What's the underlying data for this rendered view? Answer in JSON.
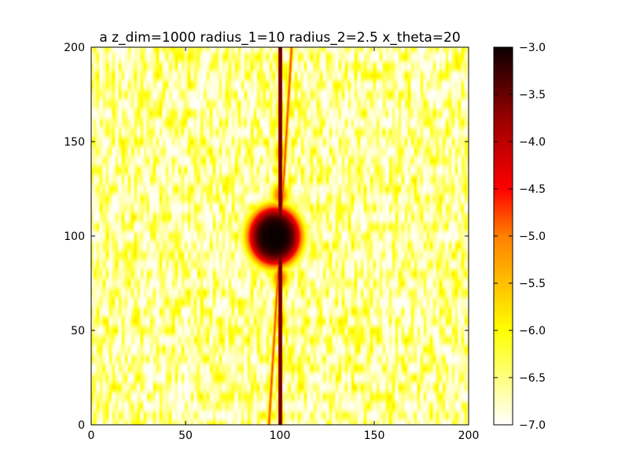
{
  "chart_data": {
    "type": "heatmap",
    "title": "a z_dim=1000 radius_1=10 radius_2=2.5 x_theta=20",
    "xlabel": "",
    "ylabel": "",
    "xlim": [
      0,
      200
    ],
    "ylim": [
      0,
      200
    ],
    "x_ticks": [
      0,
      50,
      100,
      150,
      200
    ],
    "y_ticks": [
      0,
      50,
      100,
      150,
      200
    ],
    "colormap": "hot_r",
    "colorbar": {
      "range": [
        -7.0,
        -3.0
      ],
      "ticks": [
        -3.0,
        -3.5,
        -4.0,
        -4.5,
        -5.0,
        -5.5,
        -6.0,
        -6.5,
        -7.0
      ],
      "tick_labels": [
        "−3.0",
        "−3.5",
        "−4.0",
        "−4.5",
        "−5.0",
        "−5.5",
        "−6.0",
        "−6.5",
        "−7.0"
      ]
    },
    "features": {
      "central_blob_center": [
        97,
        100
      ],
      "central_blob_half_width": 16,
      "central_blob_half_height": 18,
      "central_blob_peak": -3.0,
      "vertical_streak_x": 100,
      "tilted_streak_x_at_top": 106,
      "tilted_streak_x_at_bottom": 94,
      "background_level_range": [
        -7.0,
        -5.8
      ]
    },
    "grid": false
  }
}
